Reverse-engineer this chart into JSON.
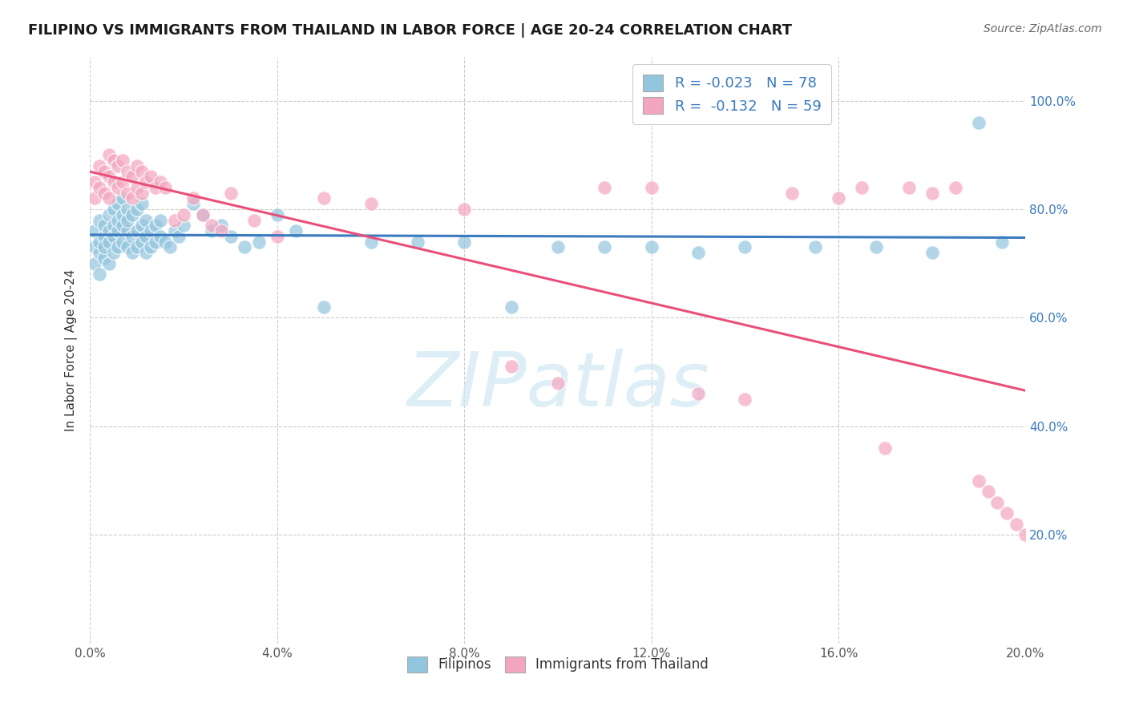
{
  "title": "FILIPINO VS IMMIGRANTS FROM THAILAND IN LABOR FORCE | AGE 20-24 CORRELATION CHART",
  "source": "Source: ZipAtlas.com",
  "ylabel": "In Labor Force | Age 20-24",
  "xlim": [
    0.0,
    0.2
  ],
  "ylim": [
    0.0,
    1.08
  ],
  "xticks": [
    0.0,
    0.04,
    0.08,
    0.12,
    0.16,
    0.2
  ],
  "yticks": [
    0.2,
    0.4,
    0.6,
    0.8,
    1.0
  ],
  "ytick_labels": [
    "20.0%",
    "40.0%",
    "60.0%",
    "80.0%",
    "100.0%"
  ],
  "xtick_labels": [
    "0.0%",
    "4.0%",
    "8.0%",
    "12.0%",
    "16.0%",
    "20.0%"
  ],
  "blue_R": -0.023,
  "blue_N": 78,
  "pink_R": -0.132,
  "pink_N": 59,
  "blue_color": "#92c5de",
  "pink_color": "#f4a6c0",
  "blue_line_color": "#3a7abf",
  "pink_line_color": "#e8507a",
  "watermark_color": "#d0e8f5",
  "blue_scatter_x": [
    0.001,
    0.001,
    0.001,
    0.002,
    0.002,
    0.002,
    0.002,
    0.003,
    0.003,
    0.003,
    0.003,
    0.004,
    0.004,
    0.004,
    0.004,
    0.005,
    0.005,
    0.005,
    0.005,
    0.006,
    0.006,
    0.006,
    0.006,
    0.007,
    0.007,
    0.007,
    0.007,
    0.008,
    0.008,
    0.008,
    0.008,
    0.009,
    0.009,
    0.009,
    0.01,
    0.01,
    0.01,
    0.011,
    0.011,
    0.011,
    0.012,
    0.012,
    0.012,
    0.013,
    0.013,
    0.014,
    0.014,
    0.015,
    0.015,
    0.016,
    0.017,
    0.018,
    0.019,
    0.02,
    0.022,
    0.024,
    0.026,
    0.028,
    0.03,
    0.033,
    0.036,
    0.04,
    0.044,
    0.05,
    0.06,
    0.07,
    0.08,
    0.09,
    0.1,
    0.11,
    0.12,
    0.13,
    0.14,
    0.155,
    0.168,
    0.18,
    0.19,
    0.195
  ],
  "blue_scatter_y": [
    0.73,
    0.76,
    0.7,
    0.72,
    0.78,
    0.68,
    0.74,
    0.75,
    0.71,
    0.77,
    0.73,
    0.79,
    0.74,
    0.7,
    0.76,
    0.8,
    0.75,
    0.72,
    0.77,
    0.81,
    0.76,
    0.73,
    0.78,
    0.82,
    0.77,
    0.74,
    0.79,
    0.8,
    0.76,
    0.73,
    0.78,
    0.79,
    0.75,
    0.72,
    0.8,
    0.76,
    0.73,
    0.81,
    0.77,
    0.74,
    0.78,
    0.75,
    0.72,
    0.76,
    0.73,
    0.77,
    0.74,
    0.78,
    0.75,
    0.74,
    0.73,
    0.76,
    0.75,
    0.77,
    0.81,
    0.79,
    0.76,
    0.77,
    0.75,
    0.73,
    0.74,
    0.79,
    0.76,
    0.62,
    0.74,
    0.74,
    0.74,
    0.62,
    0.73,
    0.73,
    0.73,
    0.72,
    0.73,
    0.73,
    0.73,
    0.72,
    0.96,
    0.74
  ],
  "pink_scatter_x": [
    0.001,
    0.001,
    0.002,
    0.002,
    0.003,
    0.003,
    0.004,
    0.004,
    0.004,
    0.005,
    0.005,
    0.006,
    0.006,
    0.007,
    0.007,
    0.008,
    0.008,
    0.009,
    0.009,
    0.01,
    0.01,
    0.011,
    0.011,
    0.012,
    0.013,
    0.014,
    0.015,
    0.016,
    0.018,
    0.02,
    0.022,
    0.024,
    0.026,
    0.028,
    0.03,
    0.035,
    0.04,
    0.05,
    0.06,
    0.08,
    0.09,
    0.1,
    0.11,
    0.12,
    0.13,
    0.14,
    0.15,
    0.16,
    0.165,
    0.17,
    0.175,
    0.18,
    0.185,
    0.19,
    0.192,
    0.194,
    0.196,
    0.198,
    0.2
  ],
  "pink_scatter_y": [
    0.85,
    0.82,
    0.88,
    0.84,
    0.87,
    0.83,
    0.9,
    0.86,
    0.82,
    0.89,
    0.85,
    0.88,
    0.84,
    0.89,
    0.85,
    0.87,
    0.83,
    0.86,
    0.82,
    0.88,
    0.84,
    0.87,
    0.83,
    0.85,
    0.86,
    0.84,
    0.85,
    0.84,
    0.78,
    0.79,
    0.82,
    0.79,
    0.77,
    0.76,
    0.83,
    0.78,
    0.75,
    0.82,
    0.81,
    0.8,
    0.51,
    0.48,
    0.84,
    0.84,
    0.46,
    0.45,
    0.83,
    0.82,
    0.84,
    0.36,
    0.84,
    0.83,
    0.84,
    0.3,
    0.28,
    0.26,
    0.24,
    0.22,
    0.2
  ]
}
